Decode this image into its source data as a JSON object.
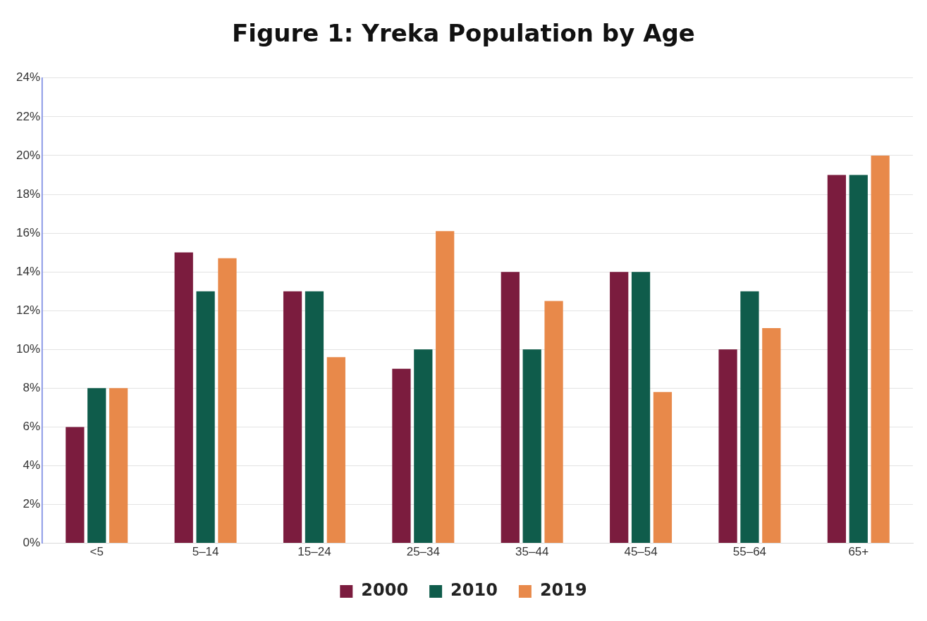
{
  "chart_data": {
    "type": "bar",
    "title": "Figure 1: Yreka Population by Age",
    "categories": [
      "<5",
      "5–14",
      "15–24",
      "25–34",
      "35–44",
      "45–54",
      "55–64",
      "65+"
    ],
    "series": [
      {
        "name": "2000",
        "color": "#7b1c3e",
        "values": [
          6,
          15,
          13,
          9,
          14,
          14,
          10,
          19
        ]
      },
      {
        "name": "2010",
        "color": "#0f5c4b",
        "values": [
          8,
          13,
          13,
          10,
          10,
          14,
          13,
          19
        ]
      },
      {
        "name": "2019",
        "color": "#e8894a",
        "values": [
          8,
          14.7,
          9.6,
          16.1,
          12.5,
          7.8,
          11.1,
          20
        ]
      }
    ],
    "ylim": [
      0,
      24
    ],
    "yticks": [
      {
        "value": 0,
        "label": "0%"
      },
      {
        "value": 2,
        "label": "2%"
      },
      {
        "value": 4,
        "label": "4%"
      },
      {
        "value": 6,
        "label": "6%"
      },
      {
        "value": 8,
        "label": "8%"
      },
      {
        "value": 10,
        "label": "10%"
      },
      {
        "value": 12,
        "label": "12%"
      },
      {
        "value": 14,
        "label": "14%"
      },
      {
        "value": 16,
        "label": "16%"
      },
      {
        "value": 18,
        "label": "18%"
      },
      {
        "value": 20,
        "label": "20%"
      },
      {
        "value": 22,
        "label": "22%"
      },
      {
        "value": 24,
        "label": "24%"
      }
    ],
    "grid": "y",
    "legend": "bottom"
  }
}
